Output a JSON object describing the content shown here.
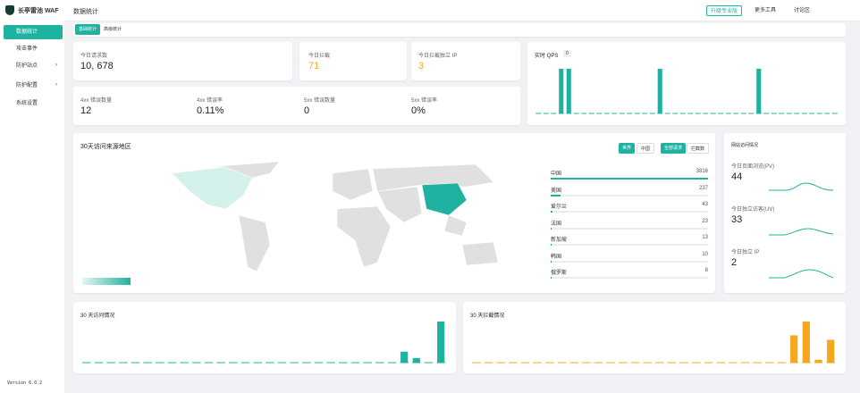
{
  "sidebar": {
    "logo": "长亭雷池 WAF",
    "menu": [
      "数据统计",
      "攻击事件",
      "防护站点",
      "防护配置",
      "系统设置"
    ],
    "version": "Version 6.0.2"
  },
  "topbar": {
    "title": "数据统计",
    "buttons": [
      "升级专业版",
      "更多工具",
      "讨论区"
    ]
  },
  "tabs": [
    "基础统计",
    "高级统计"
  ],
  "stats": [
    {
      "label": "今日请求数",
      "value": "10, 678"
    },
    {
      "label": "今日拦截",
      "value": "71"
    },
    {
      "label": "今日拦截独立 IP",
      "value": "3"
    },
    {
      "label": "4xx 错误数量",
      "value": "12"
    },
    {
      "label": "4xx 错误率",
      "value": "0.11%"
    },
    {
      "label": "5xx 错误数量",
      "value": "0"
    },
    {
      "label": "5xx 错误率",
      "value": "0%"
    }
  ],
  "map": {
    "title": "30天访问来源地区",
    "toggles": [
      "世界",
      "中国",
      "全部请求",
      "拦截数"
    ],
    "ranking": {
      "categories": [
        "中国",
        "美国",
        "爱尔兰",
        "法国",
        "新加坡",
        "韩国",
        "俄罗斯"
      ],
      "values": [
        3816,
        237,
        43,
        23,
        13,
        10,
        8
      ],
      "color": "#20b2a0"
    }
  },
  "site_visits": {
    "title": "网站访问情况",
    "items": [
      {
        "label": "今日页面浏览(PV)",
        "value": 44
      },
      {
        "label": "今日独立访客(UV)",
        "value": 33
      },
      {
        "label": "今日独立 IP",
        "value": 2
      }
    ]
  },
  "chart_data": [
    {
      "type": "bar",
      "title": "实时 QPS",
      "badge": 0,
      "color": "#20b2a0",
      "values": [
        0,
        0,
        0,
        1,
        1,
        0,
        0,
        0,
        0,
        0,
        0,
        0,
        0,
        0,
        0,
        0,
        1,
        0,
        0,
        0,
        0,
        0,
        0,
        0,
        0,
        0,
        0,
        0,
        0,
        1,
        0,
        0,
        0,
        0,
        0,
        0,
        0,
        0,
        0,
        0
      ]
    },
    {
      "type": "bar",
      "title": "30 天访问情况",
      "color": "#20b2a0",
      "values": [
        0,
        0,
        0,
        0,
        0,
        0,
        0,
        0,
        0,
        0,
        0,
        0,
        0,
        0,
        0,
        0,
        0,
        0,
        0,
        0,
        0,
        0,
        0,
        0,
        0,
        0,
        2850,
        1190,
        0,
        10678
      ]
    },
    {
      "type": "bar",
      "title": "30 天拦截情况",
      "color": "#f5a81c",
      "values": [
        0,
        0,
        0,
        0,
        0,
        0,
        0,
        0,
        0,
        0,
        0,
        0,
        0,
        0,
        0,
        0,
        0,
        0,
        0,
        0,
        0,
        0,
        0,
        0,
        0,
        0,
        85,
        128,
        9,
        71
      ]
    }
  ]
}
